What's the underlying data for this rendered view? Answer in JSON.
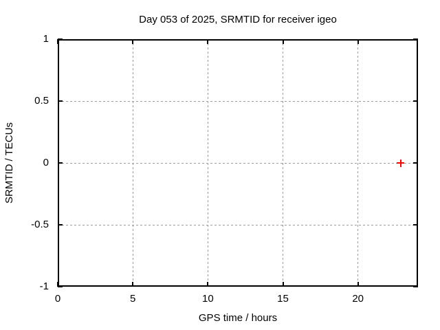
{
  "chart_data": {
    "type": "scatter",
    "title": "Day 053 of 2025, SRMTID for receiver igeo",
    "xlabel": "GPS time / hours",
    "ylabel": "SRMTID / TECUs",
    "xlim": [
      0,
      24
    ],
    "ylim": [
      -1,
      1
    ],
    "x_ticks": [
      0,
      5,
      10,
      15,
      20
    ],
    "y_ticks": [
      -1,
      -0.5,
      0,
      0.5,
      1
    ],
    "grid": true,
    "legend": "none",
    "series": [
      {
        "name": "SRMTID",
        "marker": "plus",
        "color": "#ff0000",
        "points": [
          {
            "x": 22.85,
            "y": 0.0
          }
        ]
      }
    ]
  },
  "colors": {
    "background": "#ffffff",
    "axis_border": "#000000",
    "grid": "#9b9b9b",
    "text": "#000000",
    "marker": "#ff0000"
  }
}
